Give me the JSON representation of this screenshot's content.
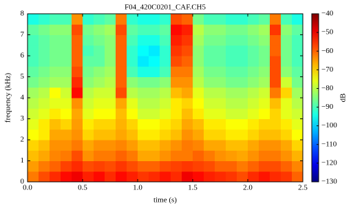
{
  "chart_data": {
    "type": "heatmap",
    "title": "F04_420C0201_CAF.CH5",
    "x_label": "time (s)",
    "y_label": "frequency (kHz)",
    "colorbar_label": "dB",
    "x_edges": [
      0,
      0.1,
      0.2,
      0.3,
      0.4,
      0.5,
      0.6,
      0.7,
      0.8,
      0.9,
      1.0,
      1.1,
      1.2,
      1.3,
      1.4,
      1.5,
      1.6,
      1.7,
      1.8,
      1.9,
      2.0,
      2.1,
      2.2,
      2.3,
      2.4,
      2.5
    ],
    "y_edges": [
      0,
      0.5,
      1,
      1.5,
      2,
      2.5,
      3,
      3.5,
      4,
      4.5,
      5,
      5.5,
      6,
      6.5,
      7,
      7.5,
      8
    ],
    "z": [
      [
        -62,
        -58,
        -55,
        -52,
        -50,
        -54,
        -52,
        -55,
        -52,
        -54,
        -56,
        -55,
        -53,
        -55,
        -50,
        -52,
        -54,
        -55,
        -56,
        -58,
        -55,
        -53,
        -55,
        -56,
        -60
      ],
      [
        -65,
        -62,
        -60,
        -57,
        -55,
        -58,
        -57,
        -58,
        -56,
        -58,
        -60,
        -60,
        -58,
        -57,
        -56,
        -57,
        -58,
        -60,
        -60,
        -62,
        -60,
        -58,
        -58,
        -60,
        -63
      ],
      [
        -68,
        -66,
        -63,
        -62,
        -58,
        -64,
        -62,
        -62,
        -60,
        -62,
        -66,
        -66,
        -64,
        -62,
        -62,
        -60,
        -62,
        -64,
        -65,
        -66,
        -64,
        -62,
        -62,
        -64,
        -67
      ],
      [
        -70,
        -68,
        -64,
        -64,
        -62,
        -66,
        -64,
        -64,
        -63,
        -65,
        -68,
        -68,
        -66,
        -64,
        -62,
        -63,
        -66,
        -66,
        -68,
        -68,
        -66,
        -64,
        -64,
        -66,
        -70
      ],
      [
        -74,
        -72,
        -66,
        -66,
        -64,
        -70,
        -68,
        -68,
        -66,
        -68,
        -72,
        -72,
        -70,
        -68,
        -64,
        -66,
        -70,
        -70,
        -72,
        -72,
        -70,
        -68,
        -68,
        -70,
        -74
      ],
      [
        -76,
        -72,
        -68,
        -70,
        -65,
        -72,
        -70,
        -70,
        -67,
        -70,
        -74,
        -74,
        -72,
        -70,
        -66,
        -68,
        -72,
        -72,
        -74,
        -74,
        -72,
        -70,
        -70,
        -72,
        -76
      ],
      [
        -78,
        -76,
        -72,
        -74,
        -66,
        -76,
        -74,
        -74,
        -68,
        -74,
        -78,
        -78,
        -76,
        -72,
        -68,
        -72,
        -76,
        -76,
        -78,
        -78,
        -76,
        -74,
        -70,
        -76,
        -78
      ],
      [
        -80,
        -78,
        -76,
        -76,
        -64,
        -78,
        -76,
        -76,
        -66,
        -76,
        -80,
        -80,
        -78,
        -72,
        -70,
        -74,
        -78,
        -78,
        -80,
        -80,
        -78,
        -76,
        -68,
        -76,
        -80
      ],
      [
        -82,
        -80,
        -74,
        -78,
        -52,
        -80,
        -78,
        -78,
        -58,
        -80,
        -82,
        -82,
        -80,
        -68,
        -66,
        -76,
        -80,
        -80,
        -82,
        -82,
        -80,
        -78,
        -62,
        -70,
        -82
      ],
      [
        -86,
        -84,
        -82,
        -82,
        -55,
        -84,
        -82,
        -80,
        -60,
        -84,
        -86,
        -86,
        -84,
        -64,
        -64,
        -80,
        -84,
        -84,
        -86,
        -86,
        -84,
        -82,
        -58,
        -78,
        -86
      ],
      [
        -88,
        -86,
        -84,
        -84,
        -58,
        -86,
        -84,
        -82,
        -60,
        -90,
        -94,
        -94,
        -90,
        -62,
        -62,
        -82,
        -86,
        -86,
        -88,
        -88,
        -86,
        -84,
        -58,
        -84,
        -88
      ],
      [
        -90,
        -88,
        -86,
        -86,
        -60,
        -88,
        -88,
        -84,
        -60,
        -92,
        -98,
        -96,
        -92,
        -58,
        -60,
        -84,
        -88,
        -88,
        -90,
        -90,
        -88,
        -86,
        -58,
        -86,
        -90
      ],
      [
        -90,
        -88,
        -86,
        -86,
        -60,
        -90,
        -88,
        -84,
        -60,
        -92,
        -96,
        -98,
        -92,
        -56,
        -58,
        -84,
        -88,
        -88,
        -90,
        -90,
        -88,
        -86,
        -60,
        -86,
        -90
      ],
      [
        -90,
        -88,
        -86,
        -86,
        -60,
        -88,
        -86,
        -84,
        -60,
        -90,
        -94,
        -94,
        -90,
        -54,
        -56,
        -82,
        -86,
        -86,
        -88,
        -88,
        -86,
        -84,
        -60,
        -86,
        -90
      ],
      [
        -88,
        -86,
        -84,
        -84,
        -58,
        -86,
        -84,
        -82,
        -58,
        -88,
        -90,
        -90,
        -88,
        -52,
        -54,
        -80,
        -84,
        -84,
        -86,
        -86,
        -84,
        -82,
        -56,
        -84,
        -88
      ],
      [
        -94,
        -92,
        -90,
        -90,
        -64,
        -92,
        -90,
        -88,
        -62,
        -92,
        -94,
        -94,
        -92,
        -58,
        -60,
        -86,
        -90,
        -90,
        -92,
        -92,
        -90,
        -88,
        -62,
        -90,
        -94
      ]
    ],
    "colormap": "jet",
    "xlim": [
      0,
      2.5
    ],
    "xticks": [
      {
        "value": 0,
        "label": "0.0"
      },
      {
        "value": 0.5,
        "label": "0.5"
      },
      {
        "value": 1,
        "label": "1.0"
      },
      {
        "value": 1.5,
        "label": "1.5"
      },
      {
        "value": 2,
        "label": "2.0"
      },
      {
        "value": 2.5,
        "label": "2.5"
      }
    ],
    "ylim": [
      0,
      8
    ],
    "yticks": [
      0,
      1,
      2,
      3,
      4,
      5,
      6,
      7,
      8
    ],
    "clim": [
      -130,
      -40
    ],
    "cticks": [
      {
        "value": -130,
        "label": "−130"
      },
      {
        "value": -120,
        "label": "−120"
      },
      {
        "value": -110,
        "label": "−110"
      },
      {
        "value": -100,
        "label": "−100"
      },
      {
        "value": -90,
        "label": "−90"
      },
      {
        "value": -80,
        "label": "−80"
      },
      {
        "value": -70,
        "label": "−70"
      },
      {
        "value": -60,
        "label": "−60"
      },
      {
        "value": -50,
        "label": "−50"
      },
      {
        "value": -40,
        "label": "−40"
      }
    ]
  }
}
